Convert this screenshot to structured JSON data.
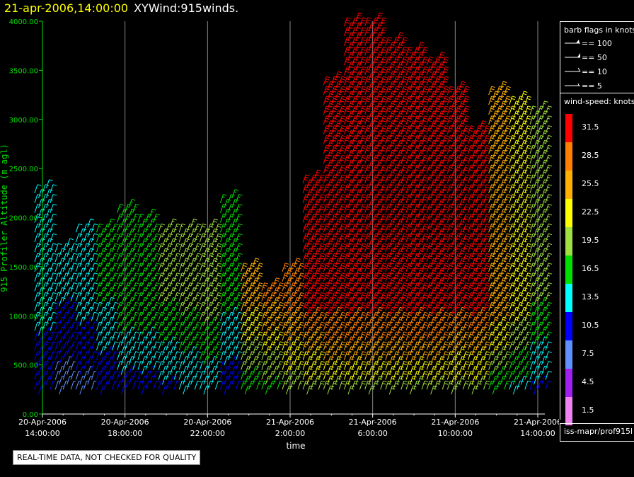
{
  "header": {
    "datetime": "21-apr-2006,14:00:00",
    "title": "XYWind:915winds."
  },
  "legend": {
    "barb_title": "barb flags in knots",
    "barbs": [
      {
        "label": "== 100"
      },
      {
        "label": "== 50"
      },
      {
        "label": "== 10"
      },
      {
        "label": "== 5"
      }
    ],
    "speed_title": "wind-speed: knots",
    "bins": [
      {
        "label": "31.5",
        "color": "#ff0000"
      },
      {
        "label": "28.5",
        "color": "#ff8000"
      },
      {
        "label": "25.5",
        "color": "#ffb000"
      },
      {
        "label": "22.5",
        "color": "#ffff00"
      },
      {
        "label": "19.5",
        "color": "#a0e040"
      },
      {
        "label": "16.5",
        "color": "#00e000"
      },
      {
        "label": "13.5",
        "color": "#00ffff"
      },
      {
        "label": "10.5",
        "color": "#0000ff"
      },
      {
        "label": "7.5",
        "color": "#6090ff"
      },
      {
        "label": "4.5",
        "color": "#a020f0"
      },
      {
        "label": "1.5",
        "color": "#ee82ee"
      }
    ]
  },
  "source_label": "iss-mapr/prof915l",
  "qc_notice": "REAL-TIME DATA, NOT CHECKED FOR QUALITY",
  "chart_data": {
    "type": "wind-barb time-height",
    "title": "XYWind:915winds.",
    "xlabel": "time",
    "ylabel": "915 Profiler Altitude (m agl)",
    "ylim": [
      0,
      4000
    ],
    "yticks": [
      "0.00",
      "500.00",
      "1000.00",
      "1500.00",
      "2000.00",
      "2500.00",
      "3000.00",
      "3500.00",
      "4000.00"
    ],
    "xticks": [
      {
        "line1": "20-Apr-2006",
        "line2": "14:00:00"
      },
      {
        "line1": "20-Apr-2006",
        "line2": "18:00:00"
      },
      {
        "line1": "20-Apr-2006",
        "line2": "22:00:00"
      },
      {
        "line1": "21-Apr-2006",
        "line2": "2:00:00"
      },
      {
        "line1": "21-Apr-2006",
        "line2": "6:00:00"
      },
      {
        "line1": "21-Apr-2006",
        "line2": "10:00:00"
      },
      {
        "line1": "21-Apr-2006",
        "line2": "14:00:00"
      }
    ],
    "grid": true,
    "profiles": [
      {
        "hours_from_start": 0.0,
        "top_m": 2250,
        "speed_knots": 14
      },
      {
        "hours_from_start": 1.0,
        "top_m": 1650,
        "speed_knots": 12
      },
      {
        "hours_from_start": 2.0,
        "top_m": 1880,
        "speed_knots": 13
      },
      {
        "hours_from_start": 3.0,
        "top_m": 1880,
        "speed_knots": 15
      },
      {
        "hours_from_start": 4.0,
        "top_m": 2100,
        "speed_knots": 17
      },
      {
        "hours_from_start": 5.0,
        "top_m": 2000,
        "speed_knots": 17
      },
      {
        "hours_from_start": 6.0,
        "top_m": 1900,
        "speed_knots": 18
      },
      {
        "hours_from_start": 7.0,
        "top_m": 1900,
        "speed_knots": 19
      },
      {
        "hours_from_start": 8.0,
        "top_m": 1900,
        "speed_knots": 20
      },
      {
        "hours_from_start": 9.0,
        "top_m": 2200,
        "speed_knots": 16
      },
      {
        "hours_from_start": 10.0,
        "top_m": 1500,
        "speed_knots": 25
      },
      {
        "hours_from_start": 11.0,
        "top_m": 1250,
        "speed_knots": 27
      },
      {
        "hours_from_start": 12.0,
        "top_m": 1450,
        "speed_knots": 29
      },
      {
        "hours_from_start": 13.0,
        "top_m": 2400,
        "speed_knots": 31
      },
      {
        "hours_from_start": 14.0,
        "top_m": 3400,
        "speed_knots": 32
      },
      {
        "hours_from_start": 15.0,
        "top_m": 3950,
        "speed_knots": 32
      },
      {
        "hours_from_start": 16.0,
        "top_m": 3950,
        "speed_knots": 32
      },
      {
        "hours_from_start": 17.0,
        "top_m": 3800,
        "speed_knots": 32
      },
      {
        "hours_from_start": 18.0,
        "top_m": 3700,
        "speed_knots": 32
      },
      {
        "hours_from_start": 19.0,
        "top_m": 3550,
        "speed_knots": 32
      },
      {
        "hours_from_start": 20.0,
        "top_m": 3300,
        "speed_knots": 31
      },
      {
        "hours_from_start": 21.0,
        "top_m": 2900,
        "speed_knots": 31
      },
      {
        "hours_from_start": 22.0,
        "top_m": 3250,
        "speed_knots": 26
      },
      {
        "hours_from_start": 23.0,
        "top_m": 3200,
        "speed_knots": 23
      },
      {
        "hours_from_start": 24.0,
        "top_m": 3100,
        "speed_knots": 18
      }
    ]
  }
}
